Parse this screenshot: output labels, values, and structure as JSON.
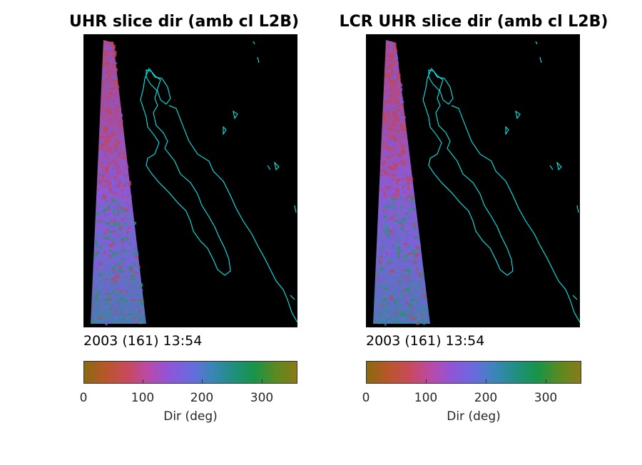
{
  "panels": [
    {
      "title": "UHR slice dir (amb cl L2B)",
      "timestamp": "2003 (161) 13:54",
      "colorbar_label": "Dir (deg)",
      "colorbar_ticks": [
        "0",
        "100",
        "200",
        "300"
      ]
    },
    {
      "title": "LCR UHR slice dir (amb cl L2B)",
      "timestamp": "2003 (161) 13:54",
      "colorbar_label": "Dir (deg)",
      "colorbar_ticks": [
        "0",
        "100",
        "200",
        "300"
      ]
    }
  ],
  "chart_data": [
    {
      "type": "heatmap",
      "title": "UHR slice dir (amb cl L2B)",
      "colorbar": {
        "label": "Dir (deg)",
        "range": [
          0,
          360
        ],
        "ticks": [
          0,
          100,
          200,
          300
        ]
      },
      "annotation": "2003 (161) 13:54",
      "coastline_color": "#00ffff",
      "background_color": "#000000"
    },
    {
      "type": "heatmap",
      "title": "LCR UHR slice dir (amb cl L2B)",
      "colorbar": {
        "label": "Dir (deg)",
        "range": [
          0,
          360
        ],
        "ticks": [
          0,
          100,
          200,
          300
        ]
      },
      "annotation": "2003 (161) 13:54",
      "coastline_color": "#00ffff",
      "background_color": "#000000"
    }
  ],
  "colormap": [
    "#8a6a10",
    "#b8562a",
    "#c84a5a",
    "#b94aa8",
    "#8f55d8",
    "#6a6ae0",
    "#3a86b8",
    "#1f8f80",
    "#189448",
    "#5a8a20",
    "#8a7a18"
  ]
}
